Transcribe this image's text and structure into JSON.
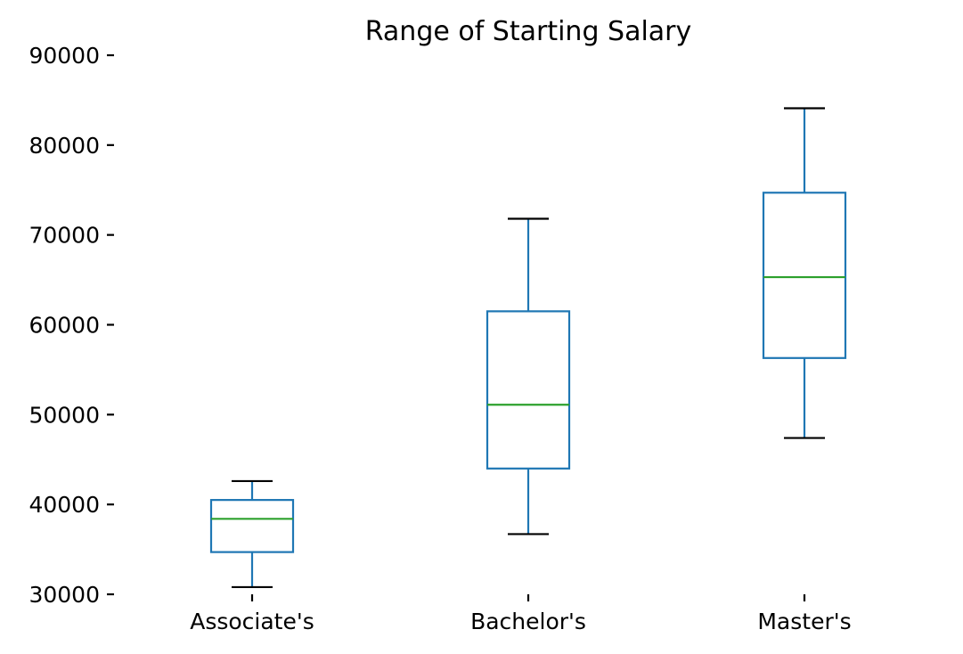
{
  "chart_data": {
    "type": "box",
    "title": "Range of Starting Salary",
    "xlabel": "",
    "ylabel": "",
    "categories": [
      "Associate's",
      "Bachelor's",
      "Master's"
    ],
    "boxes": [
      {
        "whisker_low": 30800,
        "q1": 34700,
        "median": 38400,
        "q3": 40500,
        "whisker_high": 42600
      },
      {
        "whisker_low": 36700,
        "q1": 44000,
        "median": 51100,
        "q3": 61500,
        "whisker_high": 71800
      },
      {
        "whisker_low": 47400,
        "q1": 56300,
        "median": 65300,
        "q3": 74700,
        "whisker_high": 84100
      }
    ],
    "ylim": [
      30000,
      90000
    ],
    "yticks": [
      30000,
      40000,
      50000,
      60000,
      70000,
      80000,
      90000
    ],
    "ytick_labels": [
      "30000",
      "40000",
      "50000",
      "60000",
      "70000",
      "80000",
      "90000"
    ],
    "grid": false,
    "colors": {
      "box": "#1f77b4",
      "median": "#2ca02c",
      "cap": "#000000",
      "tick": "#000000"
    }
  }
}
